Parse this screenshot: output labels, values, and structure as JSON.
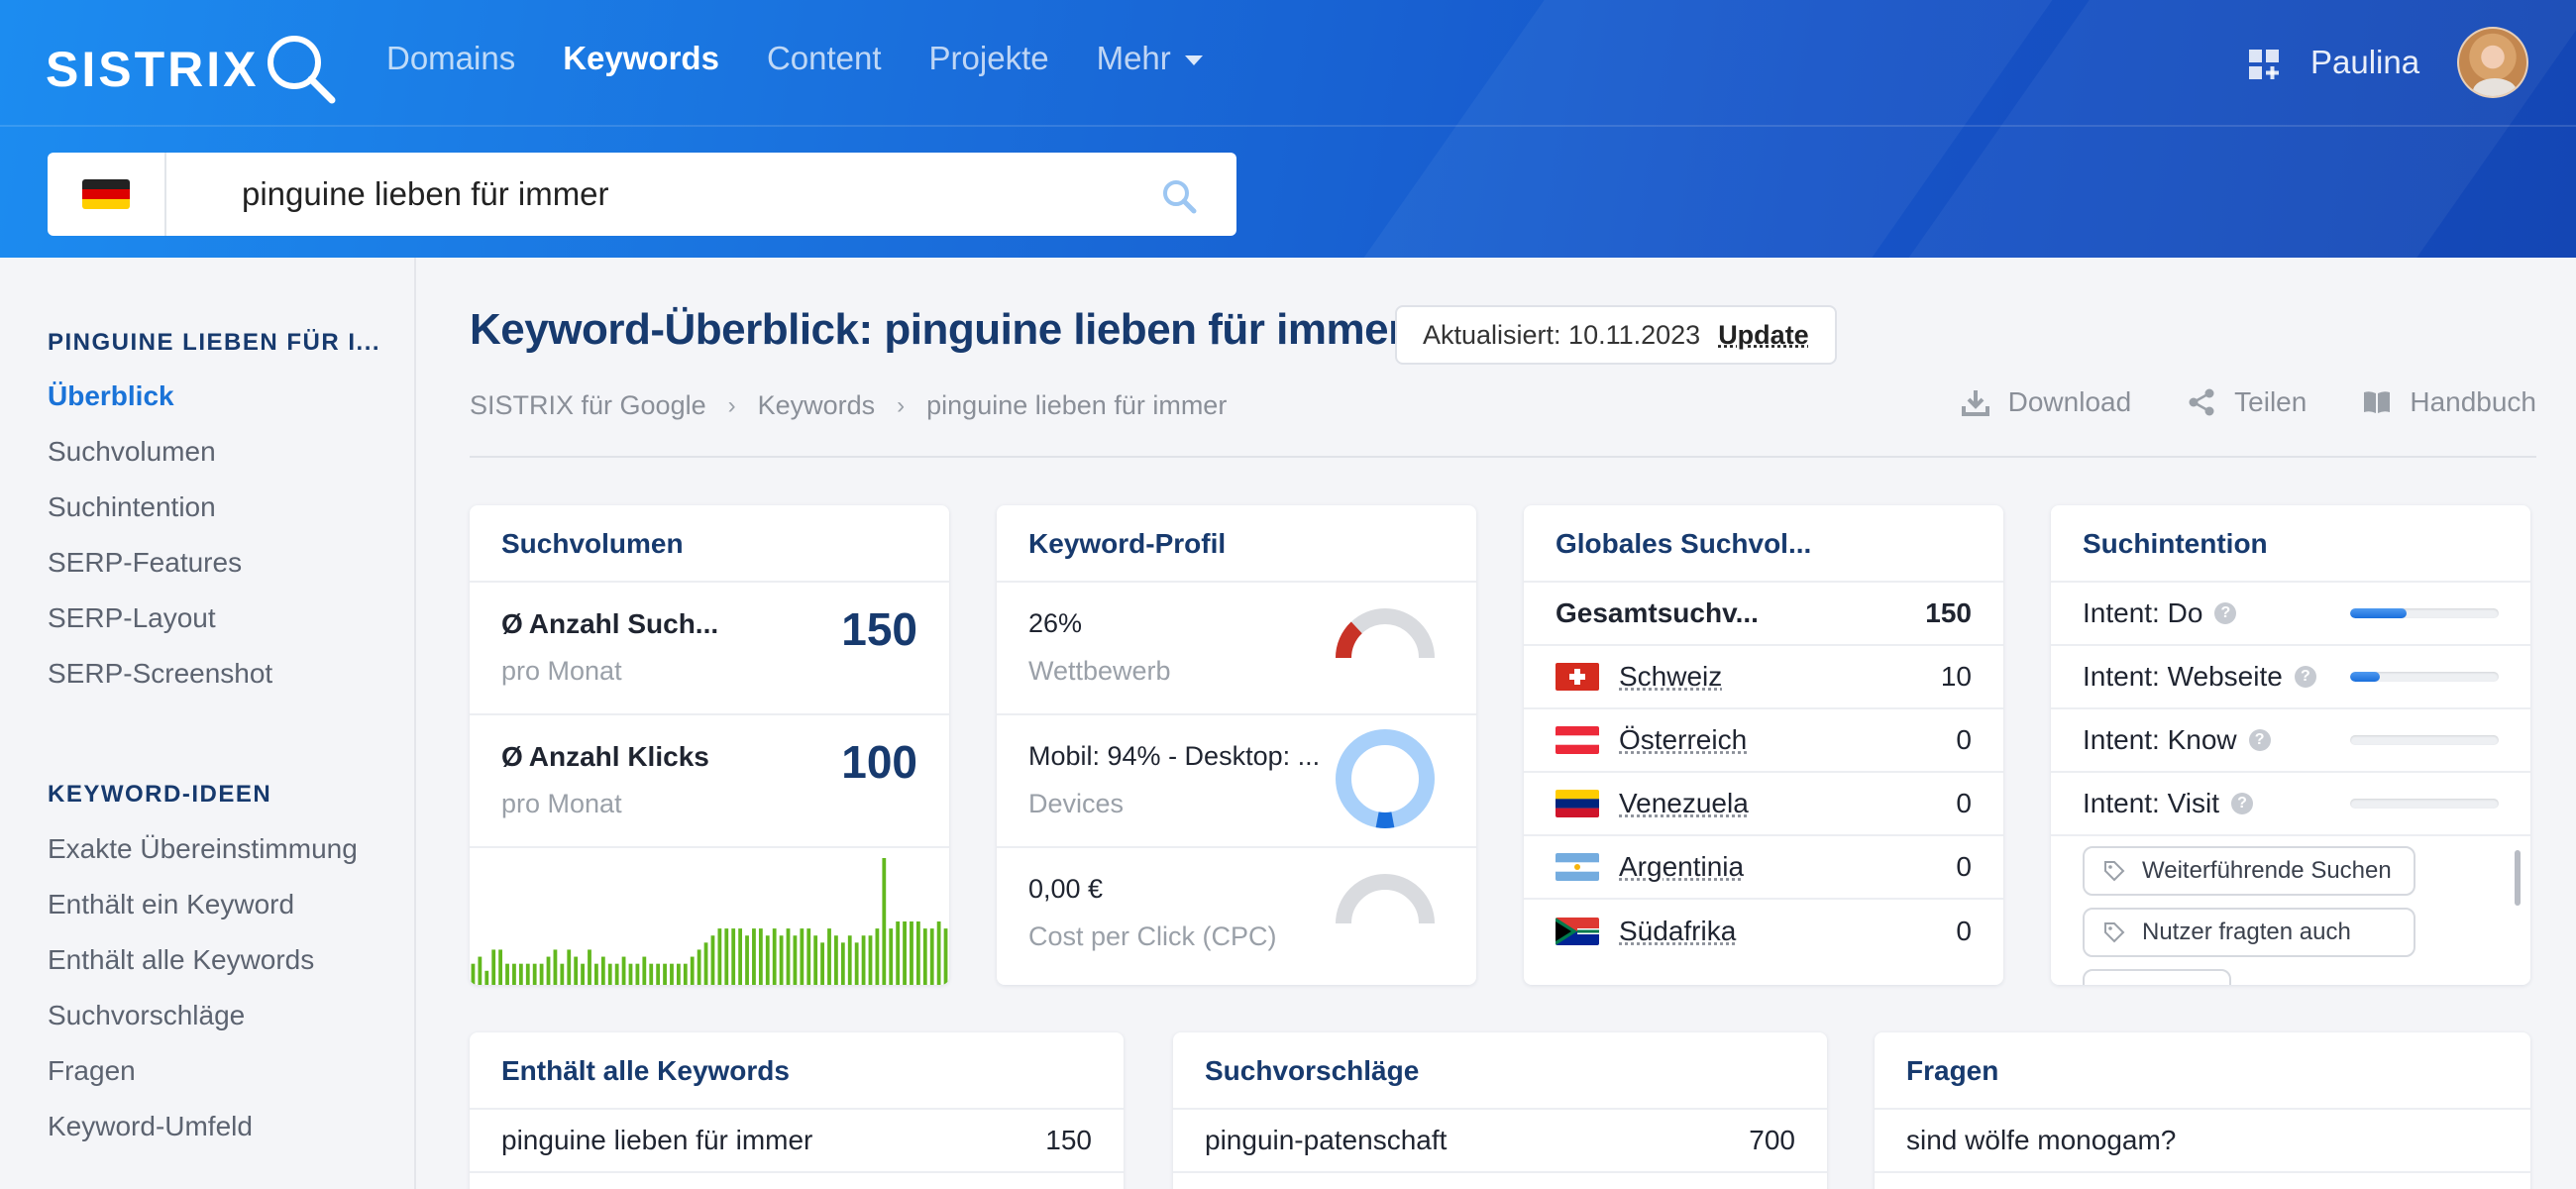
{
  "header": {
    "logo": "SISTRIX",
    "nav": [
      "Domains",
      "Keywords",
      "Content",
      "Projekte",
      "Mehr"
    ],
    "active_nav": "Keywords",
    "username": "Paulina"
  },
  "search": {
    "value": "pinguine lieben für immer",
    "country": "de"
  },
  "sidebar": {
    "section1": "PINGUINE LIEBEN FÜR I...",
    "items1": [
      "Überblick",
      "Suchvolumen",
      "Suchintention",
      "SERP-Features",
      "SERP-Layout",
      "SERP-Screenshot"
    ],
    "section2": "KEYWORD-IDEEN",
    "items2": [
      "Exakte Übereinstimmung",
      "Enthält ein Keyword",
      "Enthält alle Keywords",
      "Suchvorschläge",
      "Fragen",
      "Keyword-Umfeld"
    ]
  },
  "page": {
    "title": "Keyword-Überblick: pinguine lieben für immer",
    "updated": "Aktualisiert: 10.11.2023",
    "update_link": "Update",
    "breadcrumb": [
      "SISTRIX für Google",
      "Keywords",
      "pinguine lieben für immer"
    ],
    "download": "Download",
    "share": "Teilen",
    "manual": "Handbuch"
  },
  "suchvolumen": {
    "title": "Suchvolumen",
    "row1_label": "Anzahl Such...",
    "row1_sub": "pro Monat",
    "row1_value": "150",
    "row2_label": "Anzahl Klicks",
    "row2_sub": "pro Monat",
    "row2_value": "100",
    "avg_symbol": "Ø"
  },
  "keyword_profil": {
    "title": "Keyword-Profil",
    "competition": "26%",
    "competition_label": "Wettbewerb",
    "competition_fraction": 0.26,
    "devices": "Mobil: 94% - Desktop: ...",
    "devices_label": "Devices",
    "mobile_fraction": 0.94,
    "cpc": "0,00 €",
    "cpc_label": "Cost per Click (CPC)"
  },
  "global": {
    "title": "Globales Suchvol...",
    "total_label": "Gesamtsuchv...",
    "total_value": "150",
    "countries": [
      {
        "name": "Schweiz",
        "value": "10"
      },
      {
        "name": "Österreich",
        "value": "0"
      },
      {
        "name": "Venezuela",
        "value": "0"
      },
      {
        "name": "Argentinia",
        "value": "0"
      },
      {
        "name": "Südafrika",
        "value": "0"
      }
    ]
  },
  "intent": {
    "title": "Suchintention",
    "rows": [
      {
        "label": "Intent: Do",
        "level": 0.38
      },
      {
        "label": "Intent: Webseite",
        "level": 0.2
      },
      {
        "label": "Intent: Know",
        "level": 0
      },
      {
        "label": "Intent: Visit",
        "level": 0
      }
    ],
    "tags": [
      "Weiterführende Suchen",
      "Nutzer fragten auch"
    ]
  },
  "bottom": {
    "contains_all": {
      "title": "Enthält alle Keywords",
      "rows": [
        {
          "kw": "pinguine lieben für immer",
          "val": "150"
        }
      ]
    },
    "suggestions": {
      "title": "Suchvorschläge",
      "rows": [
        {
          "kw": "pinguin-patenschaft",
          "val": "700"
        }
      ]
    },
    "questions": {
      "title": "Fragen",
      "rows": [
        {
          "kw": "sind wölfe monogam?"
        }
      ]
    }
  },
  "chart_data": {
    "type": "bar",
    "values": [
      3,
      4,
      2,
      5,
      5,
      3,
      3,
      3,
      3,
      3,
      3,
      4,
      5,
      3,
      5,
      4,
      3,
      5,
      3,
      4,
      3,
      3,
      4,
      3,
      3,
      4,
      3,
      3,
      3,
      3,
      3,
      3,
      4,
      5,
      6,
      7,
      8,
      8,
      8,
      8,
      7,
      8,
      8,
      7,
      8,
      7,
      8,
      7,
      8,
      8,
      7,
      6,
      8,
      7,
      6,
      7,
      6,
      7,
      7,
      8,
      18,
      8,
      9,
      9,
      9,
      9,
      8,
      8,
      9,
      8
    ],
    "color": "#62b81e"
  },
  "colors": {
    "accent": "#1a73d8",
    "navy": "#173a6e",
    "gauge_red": "#c83226",
    "gauge_grey": "#d9dbdf",
    "donut_light": "#a8d0fa",
    "donut_dark": "#1a6fdc"
  }
}
